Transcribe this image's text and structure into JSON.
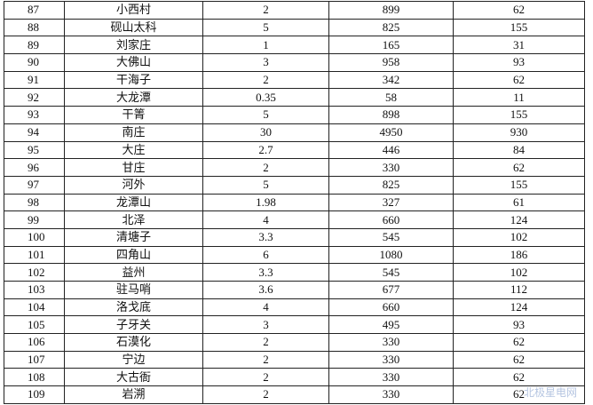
{
  "table": {
    "rows": [
      [
        "87",
        "小西村",
        "2",
        "899",
        "62"
      ],
      [
        "88",
        "砚山太科",
        "5",
        "825",
        "155"
      ],
      [
        "89",
        "刘家庄",
        "1",
        "165",
        "31"
      ],
      [
        "90",
        "大佛山",
        "3",
        "958",
        "93"
      ],
      [
        "91",
        "干海子",
        "2",
        "342",
        "62"
      ],
      [
        "92",
        "大龙潭",
        "0.35",
        "58",
        "11"
      ],
      [
        "93",
        "干箐",
        "5",
        "898",
        "155"
      ],
      [
        "94",
        "南庄",
        "30",
        "4950",
        "930"
      ],
      [
        "95",
        "大庄",
        "2.7",
        "446",
        "84"
      ],
      [
        "96",
        "甘庄",
        "2",
        "330",
        "62"
      ],
      [
        "97",
        "河外",
        "5",
        "825",
        "155"
      ],
      [
        "98",
        "龙潭山",
        "1.98",
        "327",
        "61"
      ],
      [
        "99",
        "北泽",
        "4",
        "660",
        "124"
      ],
      [
        "100",
        "清塘子",
        "3.3",
        "545",
        "102"
      ],
      [
        "101",
        "四角山",
        "6",
        "1080",
        "186"
      ],
      [
        "102",
        "益州",
        "3.3",
        "545",
        "102"
      ],
      [
        "103",
        "驻马哨",
        "3.6",
        "677",
        "112"
      ],
      [
        "104",
        "洛戈底",
        "4",
        "660",
        "124"
      ],
      [
        "105",
        "子牙关",
        "3",
        "495",
        "93"
      ],
      [
        "106",
        "石漠化",
        "2",
        "330",
        "62"
      ],
      [
        "107",
        "宁边",
        "2",
        "330",
        "62"
      ],
      [
        "108",
        "大古衙",
        "2",
        "330",
        "62"
      ],
      [
        "109",
        "岩溯",
        "2",
        "330",
        "62"
      ]
    ]
  },
  "watermark": "北极星电网"
}
